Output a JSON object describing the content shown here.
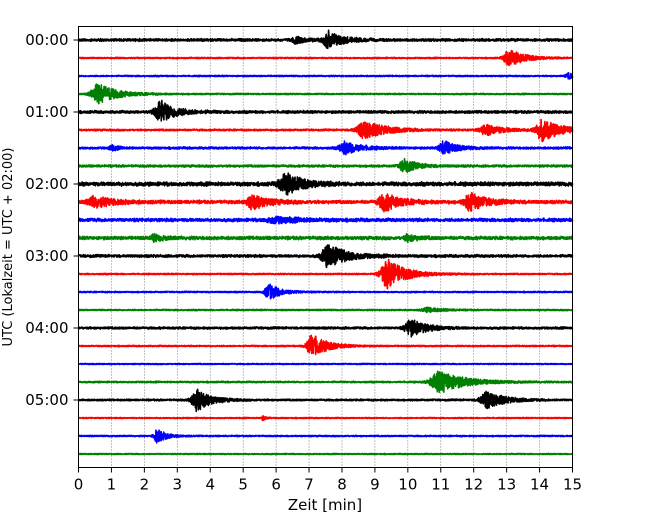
{
  "chart_data": {
    "type": "line",
    "title": "",
    "xlabel": "Zeit  [min]",
    "ylabel": "UTC (Lokalzeit = UTC + 02:00)",
    "xlim": [
      0,
      15
    ],
    "xticks": [
      "0",
      "1",
      "2",
      "3",
      "4",
      "5",
      "6",
      "7",
      "8",
      "9",
      "10",
      "11",
      "12",
      "13",
      "14",
      "15"
    ],
    "ytick_labels": [
      "00:00",
      "01:00",
      "02:00",
      "03:00",
      "04:00",
      "05:00"
    ],
    "ytick_rows": [
      0,
      4,
      8,
      12,
      16,
      20
    ],
    "grid": "vertical dotted",
    "color_cycle": [
      "#000000",
      "#ff0000",
      "#0000ff",
      "#008000"
    ],
    "traces": [
      {
        "row": 0,
        "color": "#000000",
        "noise": 0.12,
        "events": [
          {
            "t": 7.6,
            "amp": 0.95,
            "w": 0.45
          },
          {
            "t": 6.6,
            "amp": 0.35,
            "w": 0.3
          }
        ]
      },
      {
        "row": 1,
        "color": "#ff0000",
        "noise": 0.06,
        "events": [
          {
            "t": 13.1,
            "amp": 0.95,
            "w": 0.5
          }
        ]
      },
      {
        "row": 2,
        "color": "#0000ff",
        "noise": 0.06,
        "events": [
          {
            "t": 14.9,
            "amp": 0.3,
            "w": 0.3
          }
        ]
      },
      {
        "row": 3,
        "color": "#008000",
        "noise": 0.06,
        "events": [
          {
            "t": 0.6,
            "amp": 1.2,
            "w": 0.6
          }
        ]
      },
      {
        "row": 4,
        "color": "#000000",
        "noise": 0.12,
        "events": [
          {
            "t": 2.5,
            "amp": 1.25,
            "w": 0.5
          }
        ]
      },
      {
        "row": 5,
        "color": "#ff0000",
        "noise": 0.08,
        "events": [
          {
            "t": 8.7,
            "amp": 1.0,
            "w": 0.7
          },
          {
            "t": 12.4,
            "amp": 0.55,
            "w": 0.6
          },
          {
            "t": 14.1,
            "amp": 1.2,
            "w": 0.6
          }
        ]
      },
      {
        "row": 6,
        "color": "#0000ff",
        "noise": 0.1,
        "events": [
          {
            "t": 8.1,
            "amp": 0.7,
            "w": 0.5
          },
          {
            "t": 11.1,
            "amp": 0.8,
            "w": 0.4
          },
          {
            "t": 1.0,
            "amp": 0.3,
            "w": 0.2
          }
        ]
      },
      {
        "row": 7,
        "color": "#008000",
        "noise": 0.1,
        "events": [
          {
            "t": 9.9,
            "amp": 0.75,
            "w": 0.4
          }
        ]
      },
      {
        "row": 8,
        "color": "#000000",
        "noise": 0.18,
        "events": [
          {
            "t": 6.3,
            "amp": 1.2,
            "w": 0.55
          }
        ]
      },
      {
        "row": 9,
        "color": "#ff0000",
        "noise": 0.15,
        "events": [
          {
            "t": 0.5,
            "amp": 0.6,
            "w": 0.6
          },
          {
            "t": 5.3,
            "amp": 0.8,
            "w": 0.5
          },
          {
            "t": 9.3,
            "amp": 1.0,
            "w": 0.5
          },
          {
            "t": 11.9,
            "amp": 1.0,
            "w": 0.5
          }
        ]
      },
      {
        "row": 10,
        "color": "#0000ff",
        "noise": 0.15,
        "events": [
          {
            "t": 6.0,
            "amp": 0.3,
            "w": 0.8
          }
        ]
      },
      {
        "row": 11,
        "color": "#008000",
        "noise": 0.15,
        "events": [
          {
            "t": 2.3,
            "amp": 0.35,
            "w": 0.3
          },
          {
            "t": 10.0,
            "amp": 0.35,
            "w": 0.3
          }
        ]
      },
      {
        "row": 12,
        "color": "#000000",
        "noise": 0.12,
        "events": [
          {
            "t": 7.6,
            "amp": 1.25,
            "w": 0.6
          }
        ]
      },
      {
        "row": 13,
        "color": "#ff0000",
        "noise": 0.06,
        "events": [
          {
            "t": 9.4,
            "amp": 1.6,
            "w": 0.6
          }
        ]
      },
      {
        "row": 14,
        "color": "#0000ff",
        "noise": 0.06,
        "events": [
          {
            "t": 5.8,
            "amp": 0.85,
            "w": 0.4
          }
        ]
      },
      {
        "row": 15,
        "color": "#008000",
        "noise": 0.06,
        "events": [
          {
            "t": 10.6,
            "amp": 0.25,
            "w": 0.5
          }
        ]
      },
      {
        "row": 16,
        "color": "#000000",
        "noise": 0.1,
        "events": [
          {
            "t": 10.1,
            "amp": 0.95,
            "w": 0.5
          }
        ]
      },
      {
        "row": 17,
        "color": "#ff0000",
        "noise": 0.06,
        "events": [
          {
            "t": 7.1,
            "amp": 1.25,
            "w": 0.5
          }
        ]
      },
      {
        "row": 18,
        "color": "#0000ff",
        "noise": 0.05,
        "events": []
      },
      {
        "row": 19,
        "color": "#008000",
        "noise": 0.07,
        "events": [
          {
            "t": 11.0,
            "amp": 1.25,
            "w": 0.8
          }
        ]
      },
      {
        "row": 20,
        "color": "#000000",
        "noise": 0.08,
        "events": [
          {
            "t": 3.6,
            "amp": 1.25,
            "w": 0.45
          },
          {
            "t": 12.4,
            "amp": 1.0,
            "w": 0.55
          }
        ]
      },
      {
        "row": 21,
        "color": "#ff0000",
        "noise": 0.05,
        "events": [
          {
            "t": 5.6,
            "amp": 0.3,
            "w": 0.1
          }
        ]
      },
      {
        "row": 22,
        "color": "#0000ff",
        "noise": 0.06,
        "events": [
          {
            "t": 2.4,
            "amp": 0.75,
            "w": 0.3
          }
        ]
      },
      {
        "row": 23,
        "color": "#008000",
        "noise": 0.05,
        "events": []
      }
    ]
  }
}
